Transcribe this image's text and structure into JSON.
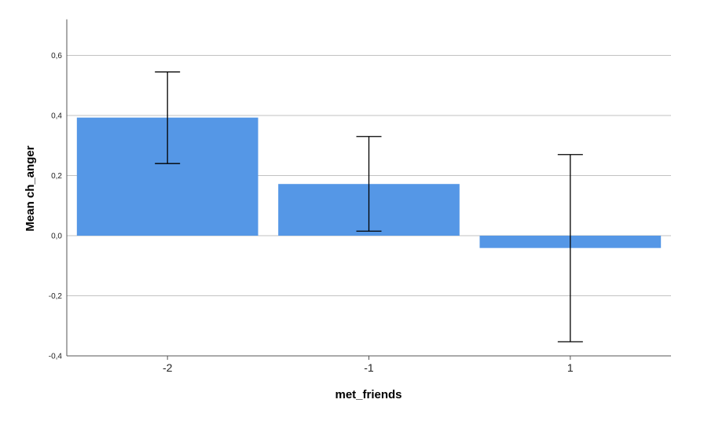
{
  "chart_data": {
    "type": "bar",
    "categories": [
      "-2",
      "-1",
      "1"
    ],
    "values": [
      0.393,
      0.172,
      -0.041
    ],
    "error_low": [
      0.24,
      0.015,
      -0.353
    ],
    "error_high": [
      0.545,
      0.33,
      0.27
    ],
    "xlabel": "met_friends",
    "ylabel": "Mean ch_anger",
    "ylim": [
      -0.4,
      0.72
    ],
    "yticks": [
      -0.4,
      -0.2,
      0.0,
      0.2,
      0.4,
      0.6
    ],
    "ytick_labels": [
      "-0,4",
      "-0,2",
      "0,0",
      "0,2",
      "0,4",
      "0,6"
    ],
    "grid": true,
    "bar_color": "#5597e6",
    "gridline_color": "#c2c2c2",
    "axis_color": "#555555",
    "error_bar_color": "#000000"
  }
}
